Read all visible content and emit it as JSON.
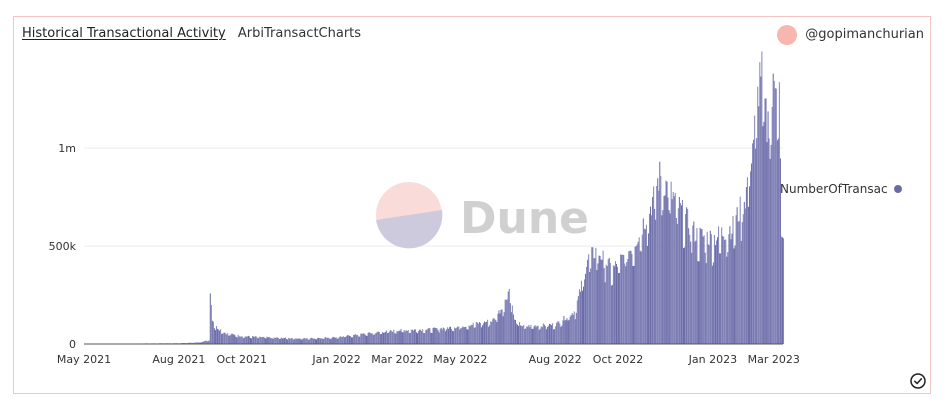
{
  "header": {
    "title": "Historical Transactional Activity",
    "subtitle": "ArbiTransactCharts",
    "author": "@gopimanchurian"
  },
  "watermark": {
    "text": "Dune"
  },
  "colors": {
    "bar": "#6b6ca6",
    "bar_light": "#8586bd",
    "grid": "#ececec",
    "accent": "#f7b7ae"
  },
  "chart_data": {
    "type": "bar",
    "title": "",
    "xlabel": "",
    "ylabel": "",
    "x_start": "2021-05-01",
    "x_end": "2023-03-10",
    "ylim": [
      0,
      1450000
    ],
    "yticks": [
      {
        "value": 0,
        "label": "0"
      },
      {
        "value": 500000,
        "label": "500k"
      },
      {
        "value": 1000000,
        "label": "1m"
      }
    ],
    "xticks": [
      {
        "date": "2021-05-01",
        "label": "May 2021"
      },
      {
        "date": "2021-08-01",
        "label": "Aug 2021"
      },
      {
        "date": "2021-10-01",
        "label": "Oct 2021"
      },
      {
        "date": "2022-01-01",
        "label": "Jan 2022"
      },
      {
        "date": "2022-03-01",
        "label": "Mar 2022"
      },
      {
        "date": "2022-05-01",
        "label": "May 2022"
      },
      {
        "date": "2022-08-01",
        "label": "Aug 2022"
      },
      {
        "date": "2022-10-01",
        "label": "Oct 2022"
      },
      {
        "date": "2023-01-01",
        "label": "Jan 2023"
      },
      {
        "date": "2023-03-01",
        "label": "Mar 2023"
      }
    ],
    "legend": {
      "placement": "right",
      "entries": [
        "NumberOfTransac"
      ]
    },
    "grid": true,
    "series": [
      {
        "name": "NumberOfTransac",
        "points": [
          [
            "2021-05-01",
            1000
          ],
          [
            "2021-06-01",
            2000
          ],
          [
            "2021-07-01",
            3000
          ],
          [
            "2021-08-01",
            4000
          ],
          [
            "2021-08-20",
            8000
          ],
          [
            "2021-08-30",
            20000
          ],
          [
            "2021-08-31",
            270000
          ],
          [
            "2021-09-02",
            130000
          ],
          [
            "2021-09-05",
            90000
          ],
          [
            "2021-09-15",
            55000
          ],
          [
            "2021-10-01",
            40000
          ],
          [
            "2021-11-01",
            32000
          ],
          [
            "2021-12-01",
            28000
          ],
          [
            "2022-01-01",
            35000
          ],
          [
            "2022-02-01",
            55000
          ],
          [
            "2022-03-01",
            70000
          ],
          [
            "2022-04-01",
            75000
          ],
          [
            "2022-05-01",
            90000
          ],
          [
            "2022-06-01",
            120000
          ],
          [
            "2022-06-12",
            200000
          ],
          [
            "2022-06-17",
            285000
          ],
          [
            "2022-06-22",
            120000
          ],
          [
            "2022-07-01",
            90000
          ],
          [
            "2022-08-01",
            100000
          ],
          [
            "2022-08-20",
            170000
          ],
          [
            "2022-09-01",
            430000
          ],
          [
            "2022-09-10",
            480000
          ],
          [
            "2022-09-25",
            380000
          ],
          [
            "2022-10-15",
            500000
          ],
          [
            "2022-11-01",
            700000
          ],
          [
            "2022-11-10",
            860000
          ],
          [
            "2022-11-20",
            780000
          ],
          [
            "2022-12-01",
            680000
          ],
          [
            "2022-12-15",
            560000
          ],
          [
            "2023-01-01",
            540000
          ],
          [
            "2023-01-20",
            600000
          ],
          [
            "2023-02-01",
            750000
          ],
          [
            "2023-02-10",
            1100000
          ],
          [
            "2023-02-16",
            1430000
          ],
          [
            "2023-02-22",
            1100000
          ],
          [
            "2023-02-27",
            1250000
          ],
          [
            "2023-03-03",
            1400000
          ],
          [
            "2023-03-06",
            1300000
          ],
          [
            "2023-03-08",
            520000
          ]
        ]
      }
    ]
  }
}
